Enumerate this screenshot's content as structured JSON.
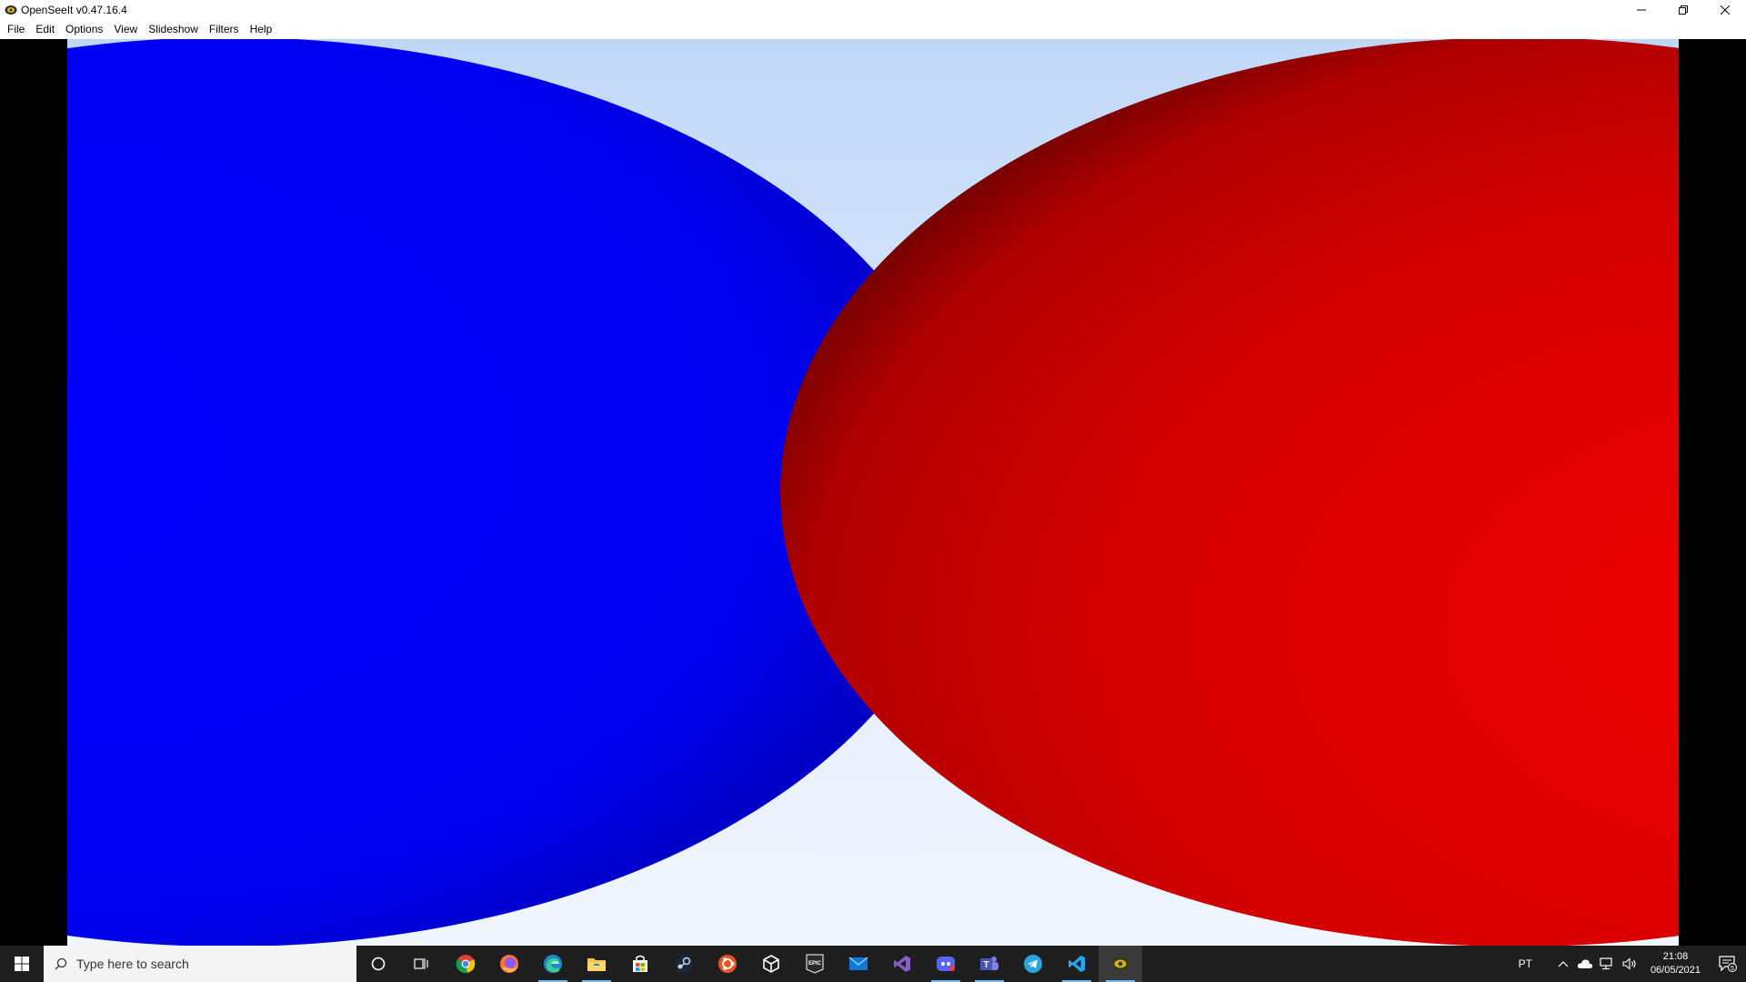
{
  "window": {
    "title": "OpenSeeIt v0.47.16.4",
    "minimize_label": "Minimize",
    "restore_label": "Restore",
    "close_label": "Close"
  },
  "menu": {
    "items": [
      "File",
      "Edit",
      "Options",
      "View",
      "Slideshow",
      "Filters",
      "Help"
    ]
  },
  "image": {
    "left_sphere_color": "#0000ff",
    "right_sphere_color": "#e00000",
    "sky_top": "#c0d8f8",
    "sky_bottom": "#f1f6fe"
  },
  "taskbar": {
    "search_placeholder": "Type here to search",
    "apps": [
      "cortana-icon",
      "task-view-icon",
      "chrome-icon",
      "firefox-icon",
      "edge-icon",
      "file-explorer-icon",
      "store-icon",
      "steam-icon",
      "ubuntu-icon",
      "unity-icon",
      "epic-games-icon",
      "mail-icon",
      "visual-studio-icon",
      "discord-icon",
      "teams-icon",
      "telegram-icon",
      "vscode-icon",
      "openseeit-icon"
    ],
    "epic_label": "EPIC",
    "language": "PT",
    "time": "21:08",
    "date": "06/05/2021",
    "notification_count": "5"
  }
}
